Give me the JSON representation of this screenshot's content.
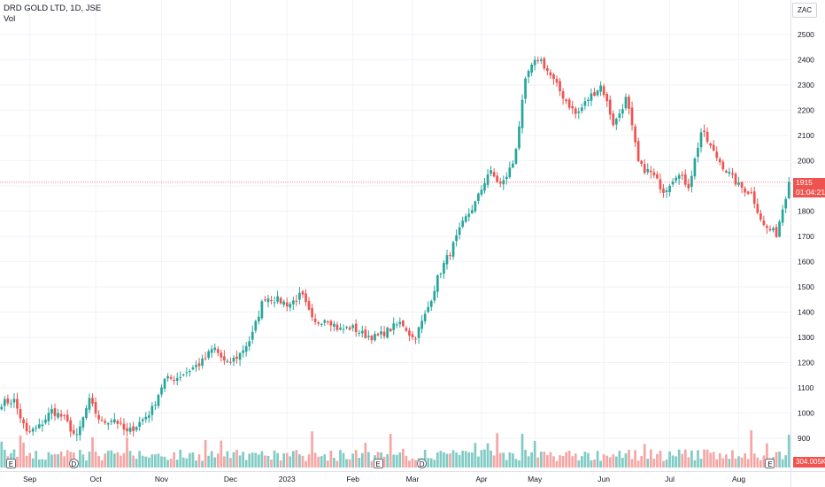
{
  "legend": {
    "symbol_line": "DRD GOLD LTD, 1D, JSE",
    "volume_label": "Vol"
  },
  "currency_button": "ZAC",
  "last_price_tag": {
    "price": "1915",
    "countdown": "01:04:21"
  },
  "volume_tag": "304.005K",
  "events": [
    {
      "type": "earnings",
      "glyph": "E",
      "date_index": 3
    },
    {
      "type": "dividend",
      "glyph": "D",
      "date_index": 23
    },
    {
      "type": "earnings",
      "glyph": "E",
      "date_index": 120
    },
    {
      "type": "dividend",
      "glyph": "D",
      "date_index": 134
    },
    {
      "type": "earnings",
      "glyph": "E",
      "date_index": 245
    }
  ],
  "colors": {
    "up": "#26a69a",
    "down": "#ef5350",
    "vol_up": "#80cbc4",
    "vol_down": "#f5a6a4",
    "grid": "#f0f3fa",
    "price_line": "#ef5350"
  },
  "chart_data": {
    "type": "candlestick",
    "title": "DRD GOLD LTD, 1D, JSE",
    "ylim": [
      800,
      2550
    ],
    "y_ticks": [
      900,
      1000,
      1100,
      1200,
      1300,
      1400,
      1500,
      1600,
      1700,
      1800,
      1900,
      2000,
      2100,
      2200,
      2300,
      2400,
      2500
    ],
    "x_ticks": [
      {
        "label": "Sep",
        "index": 9
      },
      {
        "label": "Oct",
        "index": 30
      },
      {
        "label": "Nov",
        "index": 51
      },
      {
        "label": "Dec",
        "index": 73
      },
      {
        "label": "2023",
        "index": 91
      },
      {
        "label": "Feb",
        "index": 112
      },
      {
        "label": "Mar",
        "index": 131
      },
      {
        "label": "Apr",
        "index": 153
      },
      {
        "label": "May",
        "index": 170
      },
      {
        "label": "Jun",
        "index": 192
      },
      {
        "label": "Jul",
        "index": 213
      },
      {
        "label": "Aug",
        "index": 235
      }
    ],
    "last_price": 1915,
    "key_closes": [
      1040,
      1050,
      920,
      945,
      1010,
      980,
      900,
      1050,
      960,
      980,
      920,
      960,
      1010,
      1130,
      1140,
      1170,
      1200,
      1260,
      1190,
      1230,
      1300,
      1460,
      1450,
      1430,
      1470,
      1350,
      1380,
      1330,
      1340,
      1310,
      1300,
      1330,
      1360,
      1290,
      1400,
      1550,
      1650,
      1760,
      1840,
      1960,
      1900,
      2000,
      2340,
      2410,
      2330,
      2250,
      2180,
      2250,
      2300,
      2140,
      2250,
      1980,
      1950,
      1880,
      1950,
      1900,
      2120,
      2030,
      1960,
      1900,
      1870,
      1740,
      1710,
      1915
    ]
  }
}
